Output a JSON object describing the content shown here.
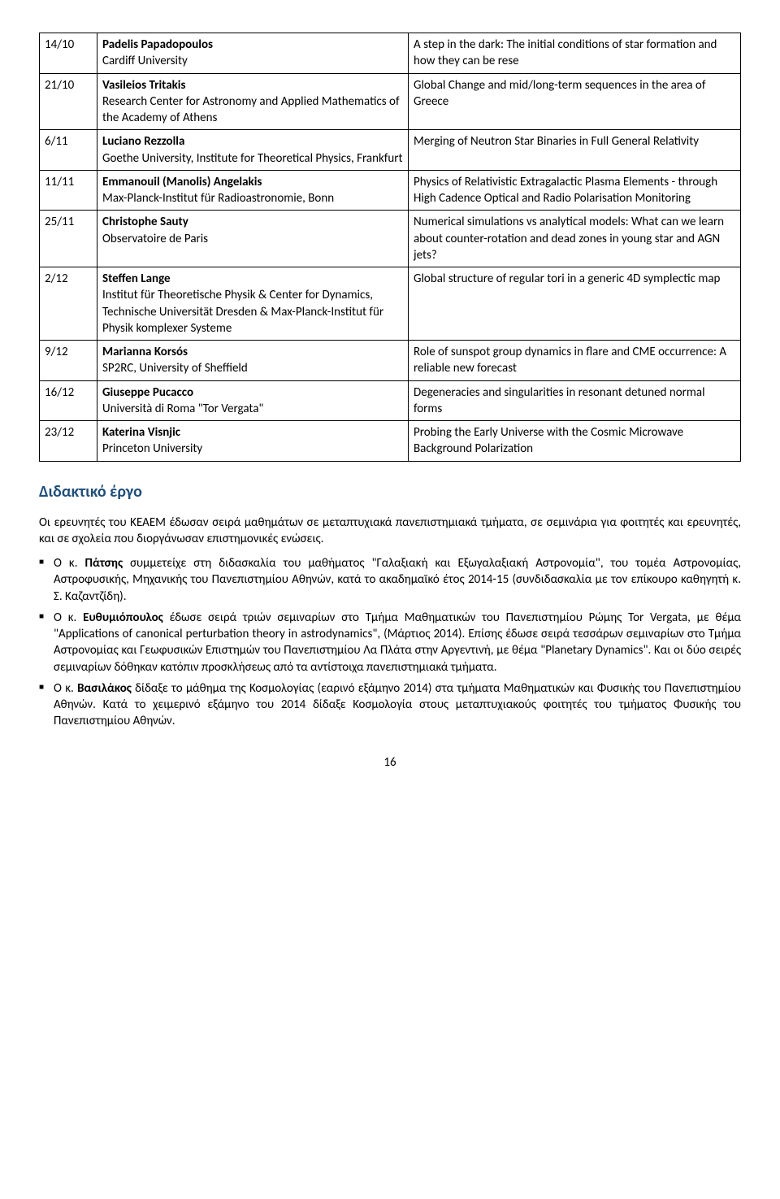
{
  "schedule": [
    {
      "date": "14/10",
      "speaker": "Padelis Papadopoulos",
      "affil": "Cardiff University",
      "title": "A step in the dark: The initial conditions of star formation and how they can be rese"
    },
    {
      "date": "21/10",
      "speaker": "Vasileios Tritakis",
      "affil": "Research Center for Astronomy and Applied Mathematics of the Academy of Athens",
      "title": "Global Change and mid/long-term sequences in the area of Greece"
    },
    {
      "date": "6/11",
      "speaker": "Luciano Rezzolla",
      "affil": "Goethe University, Institute for Theoretical Physics, Frankfurt",
      "title": "Merging of Neutron Star Binaries in Full General Relativity"
    },
    {
      "date": "11/11",
      "speaker": "Emmanouil (Manolis) Angelakis",
      "affil": "Max-Planck-Institut für Radioastronomie, Bonn",
      "title": "Physics of Relativistic Extragalactic Plasma Elements - through High Cadence Optical and Radio Polarisation Monitoring"
    },
    {
      "date": "25/11",
      "speaker": "Christophe Sauty",
      "affil": "Observatoire de Paris",
      "title": "Numerical simulations vs analytical models: What can we learn about counter-rotation and dead zones in young star and AGN jets?"
    },
    {
      "date": "2/12",
      "speaker": "Steffen Lange",
      "affil": "Institut für Theoretische Physik & Center for Dynamics, Technische Universität Dresden & Max-Planck-Institut für Physik komplexer Systeme",
      "title": "Global structure of regular tori in a generic 4D symplectic map"
    },
    {
      "date": "9/12",
      "speaker": "Marianna Korsós",
      "affil": "SP2RC, University of Sheffield",
      "title": "Role of sunspot group dynamics in flare and CME occurrence: A reliable new forecast"
    },
    {
      "date": "16/12",
      "speaker": "Giuseppe Pucacco",
      "affil": "Università di Roma \"Tor Vergata\"",
      "title": "Degeneracies and singularities in resonant detuned normal forms"
    },
    {
      "date": "23/12",
      "speaker": "Katerina Visnjic",
      "affil": "Princeton University",
      "title": "Probing the Early Universe with the Cosmic Microwave Background Polarization"
    }
  ],
  "section_heading": "Διδακτικό έργο",
  "intro": "Οι ερευνητές του ΚΕΑΕΜ έδωσαν σειρά μαθημάτων σε μεταπτυχιακά πανεπιστημιακά τμήματα, σε σεμινάρια για φοιτητές και ερευνητές, και σε σχολεία που διοργάνωσαν επιστημονικές ενώσεις.",
  "bullets": [
    {
      "lead": "Ο κ. ",
      "name": "Πάτσης",
      "rest": " συμμετείχε στη διδασκαλία του μαθήματος \"Γαλαξιακή και Εξωγαλαξιακή Αστρονομία\", του τομέα Αστρονομίας, Αστροφυσικής, Μηχανικής του Πανεπιστημίου Αθηνών, κατά το ακαδημαϊκό έτος 2014-15 (συνδιδασκαλία με τον επίκουρο καθηγητή κ. Σ. Καζαντζίδη)."
    },
    {
      "lead": "Ο κ. ",
      "name": "Ευθυμιόπουλος",
      "rest": " έδωσε σειρά τριών σεμιναρίων στο Τμήμα Μαθηματικών του Πανεπιστημίου Ρώμης Tor Vergata, με θέμα \"Applications of canonical perturbation theory in astrodynamics\", (Μάρτιος 2014). Επίσης έδωσε σειρά τεσσάρων σεμιναρίων στο Τμήμα Αστρονομίας και Γεωφυσικών Επιστημών του Πανεπιστημίου Λα Πλάτα στην Αργεντινή, με θέμα \"Planetary Dynamics\". Και οι δύο σειρές σεμιναρίων δόθηκαν κατόπιν προσκλήσεως από τα αντίστοιχα πανεπιστημιακά τμήματα."
    },
    {
      "lead": "Ο κ. ",
      "name": "Βασιλάκος",
      "rest": " δίδαξε το μάθημα της Κοσμολογίας (εαρινό εξάμηνο 2014) στα τμήματα Μαθηματικών και Φυσικής του Πανεπιστημίου Αθηνών. Κατά το χειμερινό εξάμηνο του 2014 δίδαξε Κοσμολογία στους μεταπτυχιακούς φοιτητές του τμήματος Φυσικής του Πανεπιστημίου Αθηνών."
    }
  ],
  "page_number": "16"
}
